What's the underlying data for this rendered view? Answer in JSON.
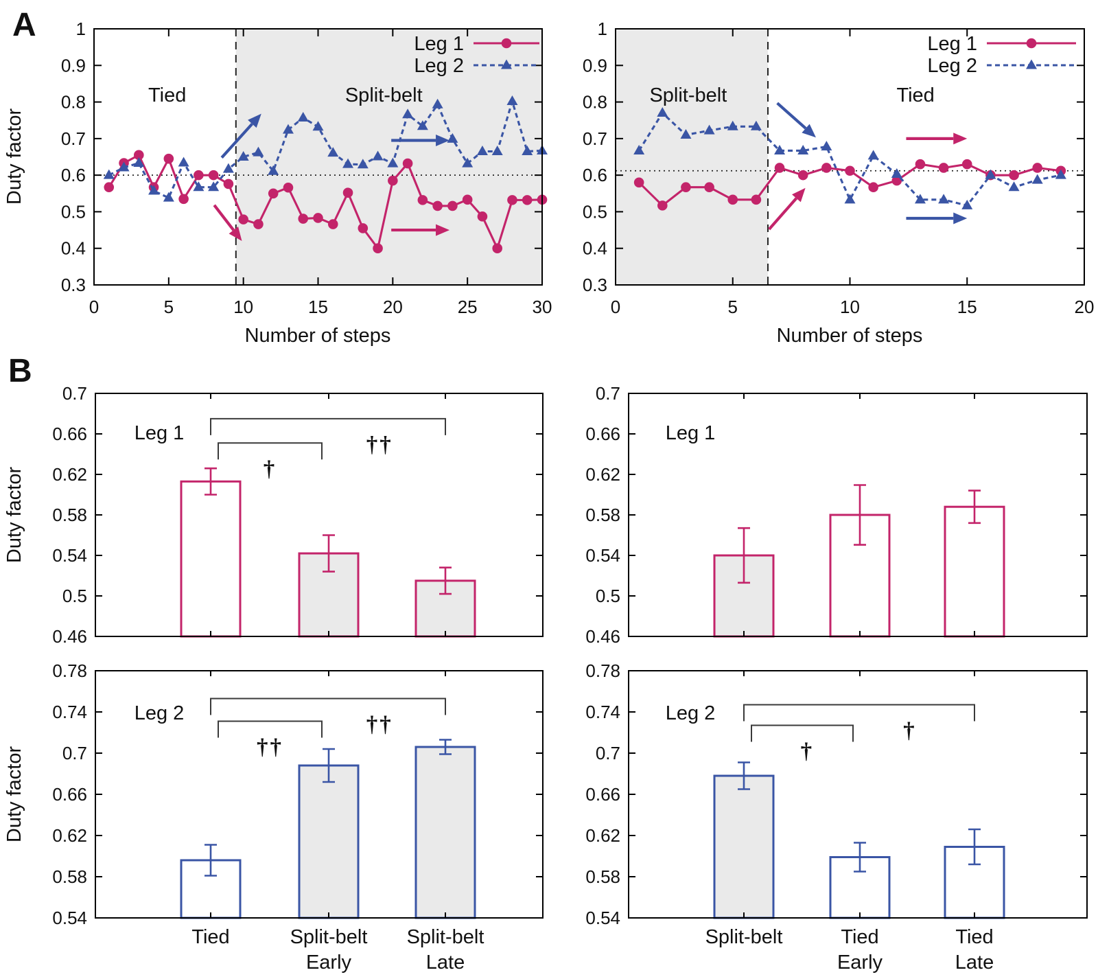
{
  "panels": {
    "a": "A",
    "b": "B"
  },
  "colors": {
    "leg1": "#C3246A",
    "leg2": "#3A55A5",
    "shade": "#EAEAEA",
    "axis": "#000000",
    "annotation": "#3a3a3a"
  },
  "chart_data": [
    {
      "id": "a-left",
      "type": "line",
      "xlabel": "Number of steps",
      "ylabel": "Duty factor",
      "xlim": [
        0,
        30
      ],
      "ylim": [
        0.3,
        1.0
      ],
      "xticks": {
        "values": [
          0,
          5,
          10,
          15,
          20,
          25,
          30
        ],
        "labels": [
          "0",
          "5",
          "10",
          "15",
          "20",
          "25",
          "30"
        ]
      },
      "yticks": {
        "values": [
          1,
          0.9,
          0.8,
          0.7,
          0.6,
          0.5,
          0.4,
          0.3
        ],
        "labels": [
          "1",
          "0.9",
          "0.8",
          "0.7",
          "0.6",
          "0.5",
          "0.4",
          "0.3"
        ]
      },
      "shade_x": [
        9.5,
        30
      ],
      "vline_x": 9.5,
      "hline_y": 0.6,
      "region_labels": [
        {
          "text": "Tied",
          "x": 4.9,
          "y": 0.82
        },
        {
          "text": "Split-belt",
          "x": 19.4,
          "y": 0.82
        }
      ],
      "x_start": 1,
      "series": [
        {
          "name": "Leg 1",
          "color_key": "leg1",
          "marker": "circle",
          "dash": false,
          "y": [
            0.567,
            0.633,
            0.655,
            0.567,
            0.645,
            0.535,
            0.6,
            0.6,
            0.576,
            0.479,
            0.466,
            0.55,
            0.566,
            0.481,
            0.483,
            0.466,
            0.552,
            0.455,
            0.4,
            0.585,
            0.632,
            0.532,
            0.516,
            0.516,
            0.533,
            0.487,
            0.4,
            0.532,
            0.532,
            0.533
          ]
        },
        {
          "name": "Leg 2",
          "color_key": "leg2",
          "marker": "triangle",
          "dash": true,
          "y": [
            0.6,
            0.621,
            0.633,
            0.557,
            0.538,
            0.634,
            0.567,
            0.567,
            0.617,
            0.65,
            0.662,
            0.611,
            0.724,
            0.757,
            0.732,
            0.661,
            0.63,
            0.629,
            0.651,
            0.632,
            0.766,
            0.734,
            0.793,
            0.699,
            0.632,
            0.665,
            0.665,
            0.802,
            0.665,
            0.667
          ]
        }
      ],
      "arrows": [
        {
          "color_key": "leg2",
          "from": [
            8.55,
            0.648
          ],
          "to": [
            11.2,
            0.768
          ]
        },
        {
          "color_key": "leg1",
          "from": [
            8.05,
            0.518
          ],
          "to": [
            9.9,
            0.42
          ]
        },
        {
          "color_key": "leg2",
          "from": [
            19.9,
            0.695
          ],
          "to": [
            23.8,
            0.695
          ]
        },
        {
          "color_key": "leg1",
          "from": [
            19.9,
            0.45
          ],
          "to": [
            23.8,
            0.45
          ]
        }
      ]
    },
    {
      "id": "a-right",
      "type": "line",
      "xlabel": "Number of steps",
      "ylabel": "",
      "xlim": [
        0,
        20
      ],
      "ylim": [
        0.3,
        1.0
      ],
      "xticks": {
        "values": [
          0,
          5,
          10,
          15,
          20
        ],
        "labels": [
          "0",
          "5",
          "10",
          "15",
          "20"
        ]
      },
      "yticks": {
        "values": [
          1,
          0.9,
          0.8,
          0.7,
          0.6,
          0.5,
          0.4,
          0.3
        ],
        "labels": [
          "1",
          "0.9",
          "0.8",
          "0.7",
          "0.6",
          "0.5",
          "0.4",
          "0.3"
        ]
      },
      "shade_x": [
        0,
        6.5
      ],
      "vline_x": 6.5,
      "hline_y": 0.612,
      "region_labels": [
        {
          "text": "Split-belt",
          "x": 3.1,
          "y": 0.82
        },
        {
          "text": "Tied",
          "x": 12.8,
          "y": 0.82
        }
      ],
      "x_start": 1,
      "series": [
        {
          "name": "Leg 1",
          "color_key": "leg1",
          "marker": "circle",
          "dash": false,
          "y": [
            0.58,
            0.517,
            0.567,
            0.567,
            0.533,
            0.533,
            0.62,
            0.6,
            0.62,
            0.612,
            0.567,
            0.585,
            0.63,
            0.62,
            0.63,
            0.6,
            0.6,
            0.62,
            0.612
          ]
        },
        {
          "name": "Leg 2",
          "color_key": "leg2",
          "marker": "triangle",
          "dash": true,
          "y": [
            0.667,
            0.77,
            0.71,
            0.722,
            0.733,
            0.733,
            0.667,
            0.667,
            0.678,
            0.533,
            0.653,
            0.603,
            0.533,
            0.533,
            0.517,
            0.6,
            0.567,
            0.587,
            0.6
          ]
        }
      ],
      "arrows": [
        {
          "color_key": "leg2",
          "from": [
            6.9,
            0.797
          ],
          "to": [
            8.55,
            0.703
          ]
        },
        {
          "color_key": "leg1",
          "from": [
            6.55,
            0.452
          ],
          "to": [
            8.1,
            0.565
          ]
        },
        {
          "color_key": "leg1",
          "from": [
            12.4,
            0.7
          ],
          "to": [
            15.0,
            0.7
          ]
        },
        {
          "color_key": "leg2",
          "from": [
            12.4,
            0.482
          ],
          "to": [
            15.0,
            0.482
          ]
        }
      ]
    },
    {
      "id": "b-top-left",
      "type": "bar",
      "color_key": "leg1",
      "inner_label": "Leg 1",
      "ylabel": "Duty factor",
      "ylim": [
        0.46,
        0.7
      ],
      "yticks": {
        "values": [
          0.46,
          0.5,
          0.54,
          0.58,
          0.62,
          0.66,
          0.7
        ],
        "labels": [
          "0.46",
          "0.5",
          "0.54",
          "0.58",
          "0.62",
          "0.66",
          "0.7"
        ]
      },
      "values": [
        0.613,
        0.542,
        0.515
      ],
      "errors": [
        0.013,
        0.018,
        0.013
      ],
      "fills": [
        "white",
        "gray",
        "gray"
      ],
      "brackets": [
        {
          "a": 0,
          "b": 1,
          "y": 0.651,
          "x1_off": 11,
          "x2_off": -10,
          "sym": "†",
          "frac": 0.5
        },
        {
          "a": 0,
          "b": 2,
          "y": 0.675,
          "x1_off": 0,
          "x2_off": 0,
          "sym": "††",
          "frac": 0.72
        }
      ]
    },
    {
      "id": "b-top-right",
      "type": "bar",
      "color_key": "leg1",
      "inner_label": "Leg 1",
      "ylabel": "",
      "ylim": [
        0.46,
        0.7
      ],
      "yticks": {
        "values": [
          0.46,
          0.5,
          0.54,
          0.58,
          0.62,
          0.66,
          0.7
        ],
        "labels": [
          "0.46",
          "0.5",
          "0.54",
          "0.58",
          "0.62",
          "0.66",
          "0.7"
        ]
      },
      "values": [
        0.54,
        0.58,
        0.588
      ],
      "errors": [
        0.027,
        0.0295,
        0.016
      ],
      "fills": [
        "gray",
        "white",
        "white"
      ],
      "brackets": []
    },
    {
      "id": "b-bottom-left",
      "type": "bar",
      "color_key": "leg2",
      "inner_label": "Leg 2",
      "ylabel": "Duty factor",
      "ylim": [
        0.54,
        0.78
      ],
      "yticks": {
        "values": [
          0.54,
          0.58,
          0.62,
          0.66,
          0.7,
          0.74,
          0.78
        ],
        "labels": [
          "0.54",
          "0.58",
          "0.62",
          "0.66",
          "0.7",
          "0.74",
          "0.78"
        ]
      },
      "values": [
        0.596,
        0.688,
        0.706
      ],
      "errors": [
        0.015,
        0.016,
        0.007
      ],
      "fills": [
        "white",
        "gray",
        "gray"
      ],
      "brackets": [
        {
          "a": 0,
          "b": 1,
          "y": 0.731,
          "x1_off": 11,
          "x2_off": -10,
          "sym": "††",
          "frac": 0.5
        },
        {
          "a": 0,
          "b": 2,
          "y": 0.753,
          "x1_off": 0,
          "x2_off": 0,
          "sym": "††",
          "frac": 0.72
        }
      ],
      "categories": [
        [
          "Tied"
        ],
        [
          "Split-belt",
          "Early"
        ],
        [
          "Split-belt",
          "Late"
        ]
      ]
    },
    {
      "id": "b-bottom-right",
      "type": "bar",
      "color_key": "leg2",
      "inner_label": "Leg 2",
      "ylabel": "",
      "ylim": [
        0.54,
        0.78
      ],
      "yticks": {
        "values": [
          0.54,
          0.58,
          0.62,
          0.66,
          0.7,
          0.74,
          0.78
        ],
        "labels": [
          "0.54",
          "0.58",
          "0.62",
          "0.66",
          "0.7",
          "0.74",
          "0.78"
        ]
      },
      "values": [
        0.678,
        0.599,
        0.609
      ],
      "errors": [
        0.013,
        0.014,
        0.017
      ],
      "fills": [
        "gray",
        "white",
        "white"
      ],
      "brackets": [
        {
          "a": 0,
          "b": 1,
          "y": 0.727,
          "x1_off": 11,
          "x2_off": -10,
          "sym": "†",
          "frac": 0.55
        },
        {
          "a": 0,
          "b": 2,
          "y": 0.747,
          "x1_off": 0,
          "x2_off": 0,
          "sym": "†",
          "frac": 0.72
        }
      ],
      "categories": [
        [
          "Split-belt"
        ],
        [
          "Tied",
          "Early"
        ],
        [
          "Tied",
          "Late"
        ]
      ]
    }
  ]
}
